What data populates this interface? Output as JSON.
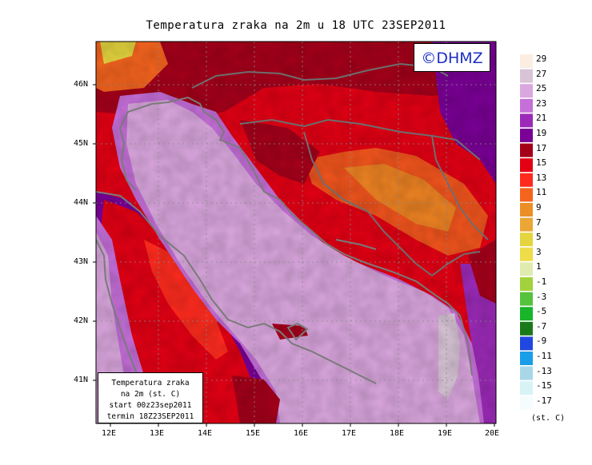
{
  "title": "Temperatura zraka na 2m u 18 UTC 23SEP2011",
  "logo": "©DHMZ",
  "info_box": {
    "line1": "Temperatura zraka",
    "line2": "na 2m (st. C)",
    "line3": "start 00z23sep2011",
    "line4": "termin 18Z23SEP2011"
  },
  "lat_labels": [
    "46N",
    "45N",
    "44N",
    "43N",
    "42N",
    "41N"
  ],
  "lon_labels": [
    "12E",
    "13E",
    "14E",
    "15E",
    "16E",
    "17E",
    "18E",
    "19E",
    "20E"
  ],
  "legend": {
    "unit": "(st. C)",
    "labels": [
      "29",
      "27",
      "25",
      "23",
      "21",
      "19",
      "17",
      "15",
      "13",
      "11",
      "9",
      "7",
      "5",
      "3",
      "1",
      "-1",
      "-3",
      "-5",
      "-7",
      "-9",
      "-11",
      "-13",
      "-15",
      "-17"
    ],
    "colors": [
      "#fbeee0",
      "#d8c4d6",
      "#dba7df",
      "#c56fd9",
      "#9c2ab8",
      "#7a0096",
      "#a5001a",
      "#e40014",
      "#ff2b1e",
      "#f5641e",
      "#ec8e26",
      "#eba636",
      "#e4d43e",
      "#eedc4a",
      "#e0ebb0",
      "#a2d23c",
      "#56c33c",
      "#18b42a",
      "#1a7a1a",
      "#2048e0",
      "#1a9ee8",
      "#a8d8e8",
      "#d8f3f6",
      "#f4fcfd"
    ]
  }
}
